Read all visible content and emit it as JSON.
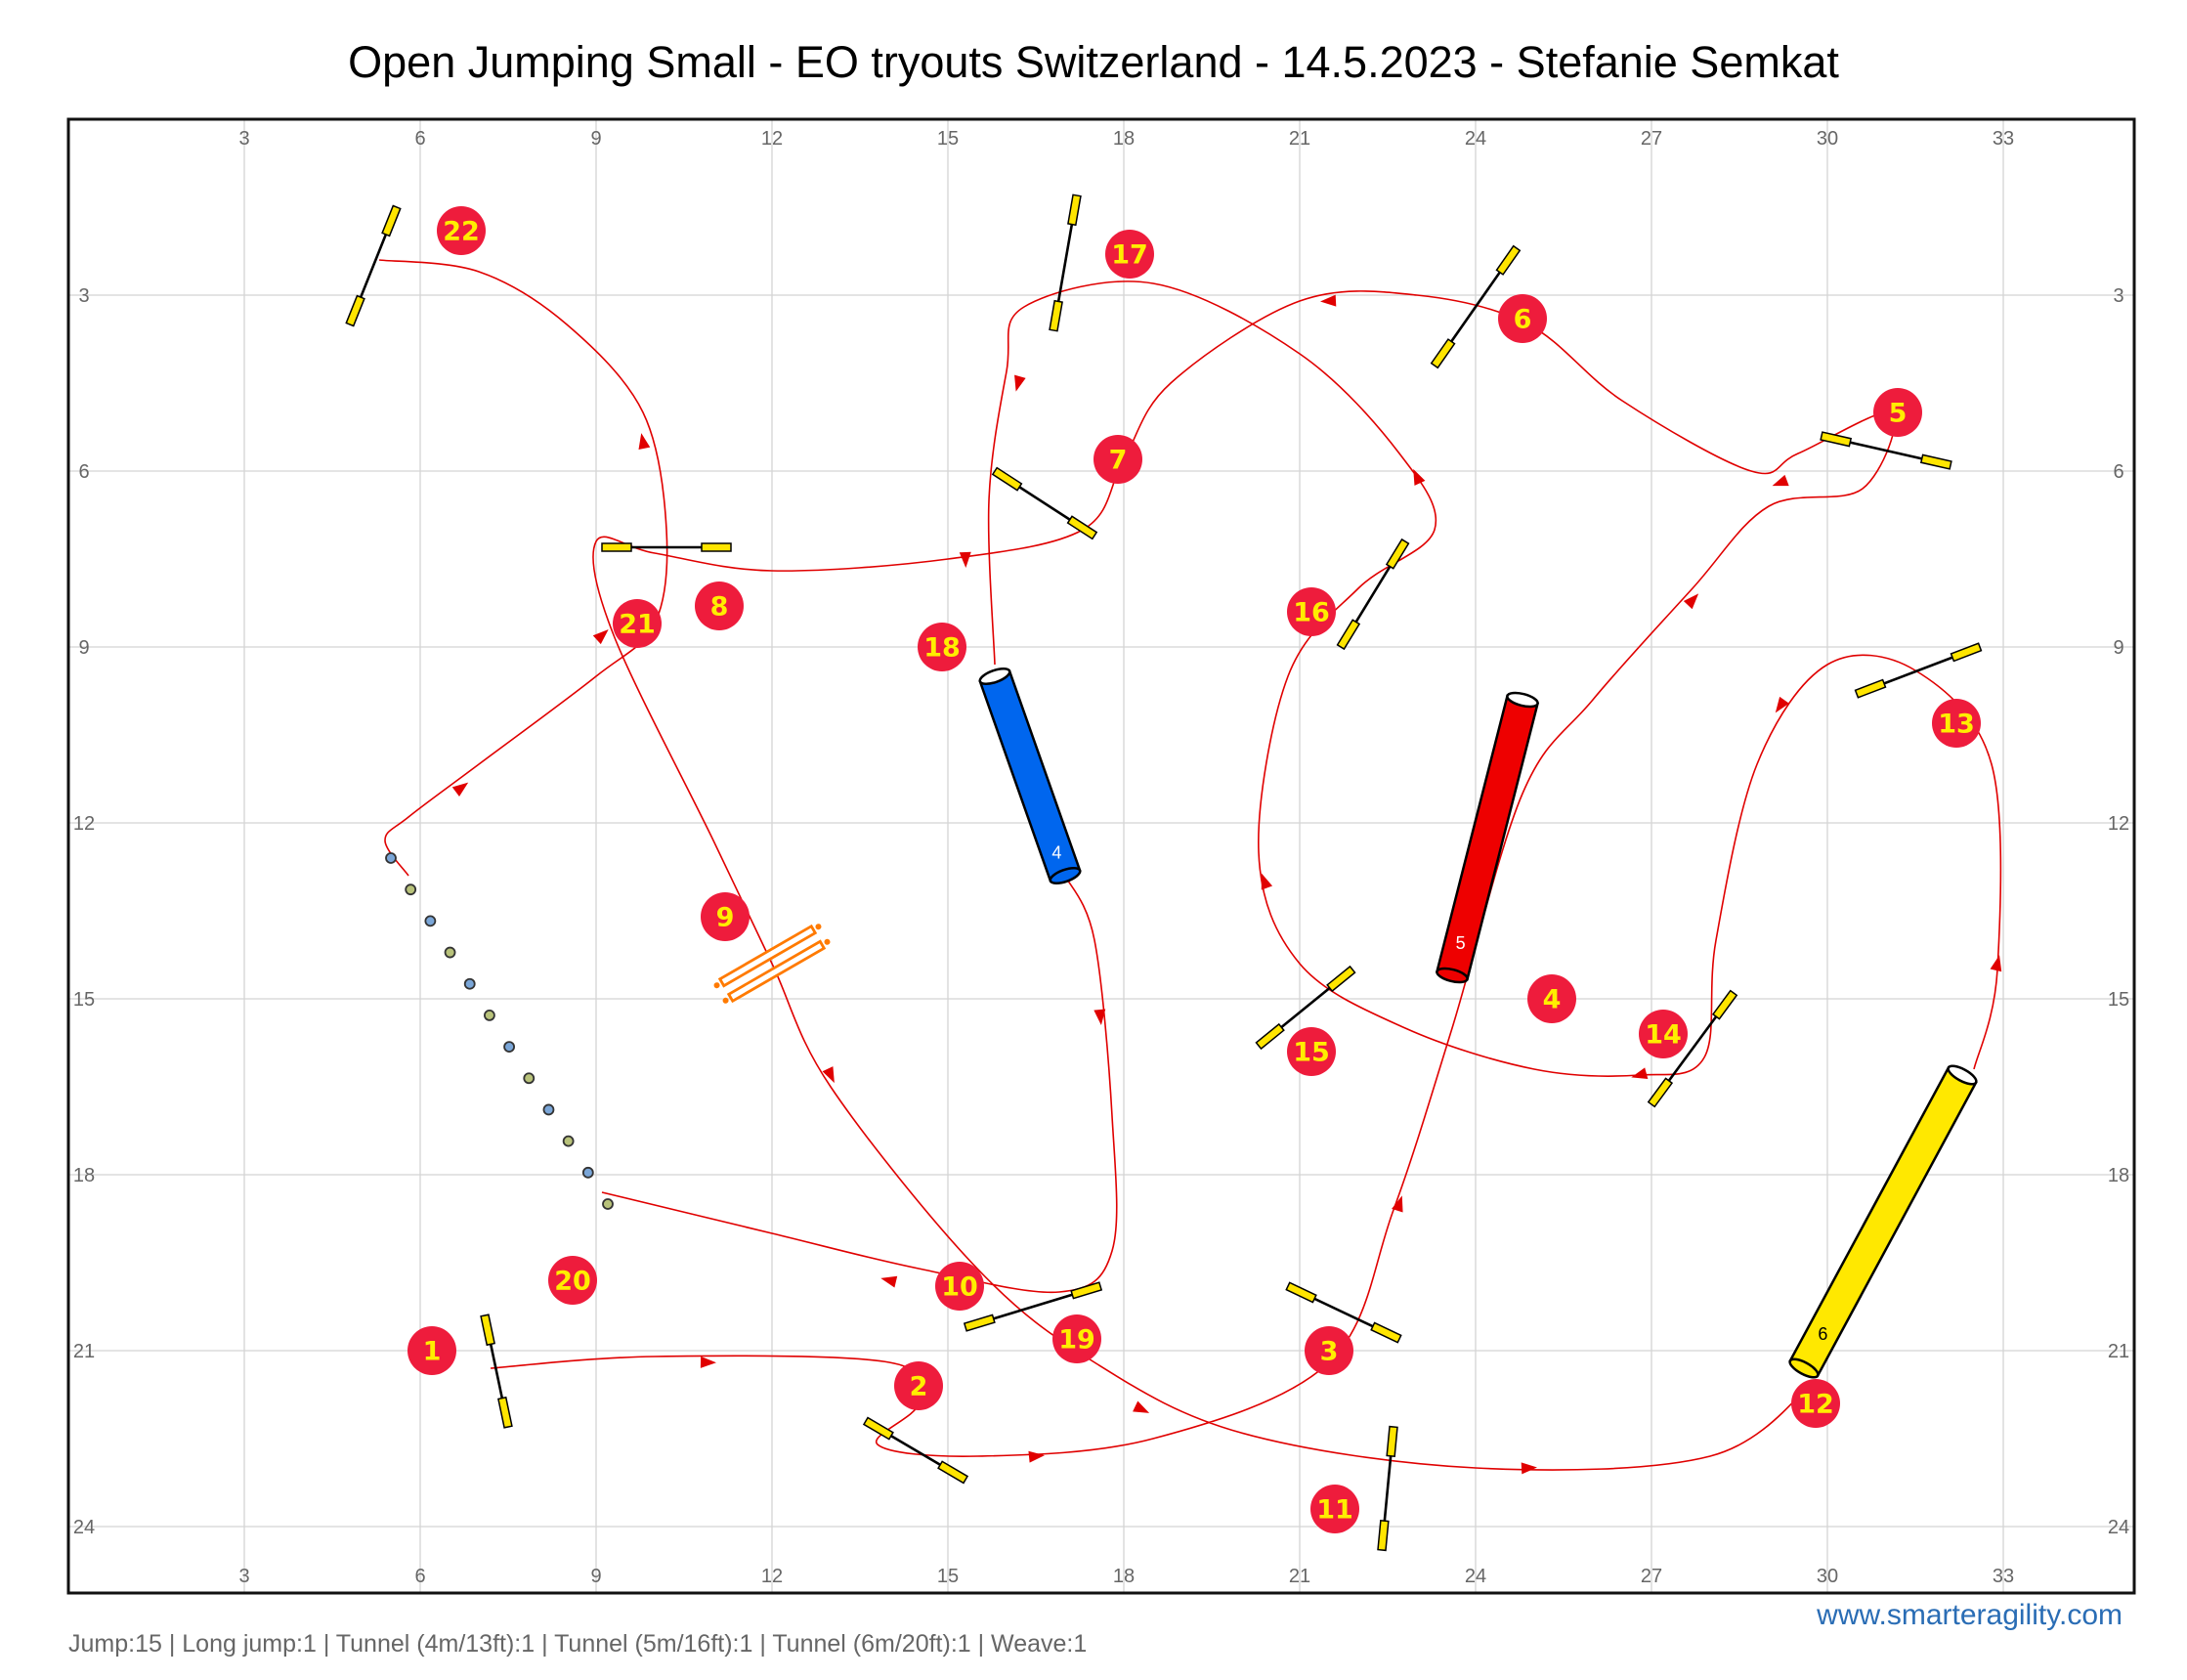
{
  "title": "Open Jumping Small - EO tryouts Switzerland - 14.5.2023 - Stefanie Semkat",
  "summary": "Jump:15 | Long jump:1 | Tunnel (4m/13ft):1 | Tunnel (5m/16ft):1 | Tunnel (6m/20ft):1 | Weave:1",
  "website": "www.smarteragility.com",
  "axes": {
    "x_ticks": [
      "3",
      "6",
      "9",
      "12",
      "15",
      "18",
      "21",
      "24",
      "27",
      "30",
      "33"
    ],
    "y_ticks": [
      "3",
      "6",
      "9",
      "12",
      "15",
      "18",
      "21",
      "24"
    ]
  },
  "colors": {
    "path": "#e00000",
    "number_circle": "#ee1c3c",
    "number_text": "#ffee00",
    "jump_wing": "#ffe500",
    "long_jump": "#ff7a00",
    "grid": "#d4d4d4"
  },
  "jumps": [
    {
      "x1": 5.6,
      "y1": 1.5,
      "x2": 4.8,
      "y2": 3.5
    },
    {
      "x1": 17.2,
      "y1": 1.3,
      "x2": 16.8,
      "y2": 3.6
    },
    {
      "x1": 24.7,
      "y1": 2.2,
      "x2": 23.3,
      "y2": 4.2
    },
    {
      "x1": 29.9,
      "y1": 5.4,
      "x2": 32.1,
      "y2": 5.9
    },
    {
      "x1": 15.8,
      "y1": 6.0,
      "x2": 17.5,
      "y2": 7.1
    },
    {
      "x1": 9.1,
      "y1": 7.3,
      "x2": 11.3,
      "y2": 7.3
    },
    {
      "x1": 22.8,
      "y1": 7.2,
      "x2": 21.7,
      "y2": 9.0
    },
    {
      "x1": 32.6,
      "y1": 9.0,
      "x2": 30.5,
      "y2": 9.8
    },
    {
      "x1": 28.4,
      "y1": 14.9,
      "x2": 27.0,
      "y2": 16.8
    },
    {
      "x1": 21.9,
      "y1": 14.5,
      "x2": 20.3,
      "y2": 15.8
    },
    {
      "x1": 17.6,
      "y1": 19.9,
      "x2": 15.3,
      "y2": 20.6
    },
    {
      "x1": 20.8,
      "y1": 19.9,
      "x2": 22.7,
      "y2": 20.8
    },
    {
      "x1": 7.1,
      "y1": 20.4,
      "x2": 7.5,
      "y2": 22.3
    },
    {
      "x1": 13.6,
      "y1": 22.2,
      "x2": 15.3,
      "y2": 23.2
    },
    {
      "x1": 22.6,
      "y1": 22.3,
      "x2": 22.4,
      "y2": 24.4
    }
  ],
  "numbers": [
    {
      "label": "1",
      "x": 6.2,
      "y": 21.0
    },
    {
      "label": "2",
      "x": 14.5,
      "y": 21.6
    },
    {
      "label": "3",
      "x": 21.5,
      "y": 21.0
    },
    {
      "label": "4",
      "x": 25.3,
      "y": 15.0
    },
    {
      "label": "5",
      "x": 31.2,
      "y": 5.0
    },
    {
      "label": "6",
      "x": 24.8,
      "y": 3.4
    },
    {
      "label": "7",
      "x": 17.9,
      "y": 5.8
    },
    {
      "label": "8",
      "x": 11.1,
      "y": 8.3
    },
    {
      "label": "9",
      "x": 11.2,
      "y": 13.6
    },
    {
      "label": "10",
      "x": 15.2,
      "y": 19.9
    },
    {
      "label": "11",
      "x": 21.6,
      "y": 23.7
    },
    {
      "label": "12",
      "x": 29.8,
      "y": 21.9
    },
    {
      "label": "13",
      "x": 32.2,
      "y": 10.3
    },
    {
      "label": "14",
      "x": 27.2,
      "y": 15.6
    },
    {
      "label": "15",
      "x": 21.2,
      "y": 15.9
    },
    {
      "label": "16",
      "x": 21.2,
      "y": 8.4
    },
    {
      "label": "17",
      "x": 18.1,
      "y": 2.3
    },
    {
      "label": "18",
      "x": 14.9,
      "y": 9.0
    },
    {
      "label": "19",
      "x": 17.2,
      "y": 20.8
    },
    {
      "label": "20",
      "x": 8.6,
      "y": 19.8
    },
    {
      "label": "21",
      "x": 9.7,
      "y": 8.6
    },
    {
      "label": "22",
      "x": 6.7,
      "y": 1.9
    }
  ],
  "tunnels": [
    {
      "label": "4",
      "color": "#0066ee",
      "label_color": "#ffffff",
      "x1": 15.8,
      "y1": 9.5,
      "x2": 17.0,
      "y2": 12.9
    },
    {
      "label": "5",
      "color": "#ee0000",
      "label_color": "#ffffff",
      "x1": 24.8,
      "y1": 9.9,
      "x2": 23.6,
      "y2": 14.6
    },
    {
      "label": "6",
      "color": "#ffe800",
      "label_color": "#000000",
      "x1": 32.3,
      "y1": 16.3,
      "x2": 29.6,
      "y2": 21.3
    }
  ],
  "weave": {
    "x1": 5.5,
    "y1": 12.6,
    "x2": 9.2,
    "y2": 18.5,
    "poles": 12
  },
  "long_jump": {
    "x": 12.0,
    "y": 14.4,
    "angle": -30,
    "length": 1.8
  },
  "course_path": [
    [
      7.2,
      21.3
    ],
    [
      10.0,
      21.1
    ],
    [
      14.0,
      21.2
    ],
    [
      14.5,
      21.9
    ],
    [
      13.8,
      22.6
    ],
    [
      15.5,
      22.8
    ],
    [
      18.5,
      22.5
    ],
    [
      21.5,
      21.2
    ],
    [
      22.6,
      18.6
    ],
    [
      23.6,
      15.5
    ],
    [
      24.8,
      11.5
    ],
    [
      26.0,
      9.9
    ],
    [
      27.7,
      8.0
    ],
    [
      29.0,
      6.6
    ],
    [
      30.6,
      6.3
    ],
    [
      31.1,
      5.0
    ],
    [
      29.5,
      5.7
    ],
    [
      28.7,
      6.0
    ],
    [
      26.5,
      4.8
    ],
    [
      24.9,
      3.5
    ],
    [
      23.0,
      3.0
    ],
    [
      21.0,
      3.1
    ],
    [
      18.8,
      4.5
    ],
    [
      18.0,
      5.8
    ],
    [
      17.3,
      7.0
    ],
    [
      15.0,
      7.5
    ],
    [
      12.0,
      7.7
    ],
    [
      10.0,
      7.4
    ],
    [
      9.0,
      7.2
    ],
    [
      9.3,
      8.8
    ],
    [
      11.0,
      12.3
    ],
    [
      12.0,
      14.4
    ],
    [
      13.0,
      16.5
    ],
    [
      15.5,
      19.6
    ],
    [
      17.5,
      21.2
    ],
    [
      20.0,
      22.4
    ],
    [
      24.0,
      23.0
    ],
    [
      28.0,
      22.8
    ],
    [
      29.8,
      21.5
    ]
  ],
  "course_path_b": [
    [
      32.5,
      16.2
    ],
    [
      32.9,
      14.5
    ],
    [
      32.8,
      11.0
    ],
    [
      31.5,
      9.4
    ],
    [
      30.0,
      9.3
    ],
    [
      28.8,
      11.0
    ],
    [
      28.1,
      14.0
    ],
    [
      27.9,
      16.0
    ],
    [
      26.8,
      16.3
    ],
    [
      25.0,
      16.2
    ],
    [
      22.8,
      15.5
    ],
    [
      21.0,
      14.4
    ],
    [
      20.3,
      12.5
    ],
    [
      20.8,
      9.5
    ],
    [
      22.0,
      8.0
    ],
    [
      23.3,
      7.0
    ],
    [
      22.7,
      5.7
    ],
    [
      21.0,
      4.0
    ],
    [
      18.5,
      2.8
    ],
    [
      16.3,
      3.2
    ],
    [
      16.0,
      4.3
    ],
    [
      15.7,
      6.5
    ],
    [
      15.8,
      9.3
    ]
  ],
  "course_path_c": [
    [
      17.0,
      12.9
    ],
    [
      17.5,
      14.0
    ],
    [
      17.8,
      17.0
    ],
    [
      17.8,
      19.3
    ],
    [
      16.9,
      20.0
    ],
    [
      14.5,
      19.6
    ],
    [
      12.0,
      19.0
    ],
    [
      9.1,
      18.3
    ]
  ],
  "course_path_d": [
    [
      5.8,
      12.9
    ],
    [
      5.4,
      12.3
    ],
    [
      5.8,
      11.9
    ],
    [
      7.0,
      11.0
    ],
    [
      9.0,
      9.5
    ],
    [
      10.0,
      8.6
    ],
    [
      10.2,
      7.0
    ],
    [
      9.8,
      5.0
    ],
    [
      8.5,
      3.5
    ],
    [
      7.0,
      2.6
    ],
    [
      5.3,
      2.4
    ]
  ],
  "arrows": [
    [
      10.9,
      21.2
    ],
    [
      16.5,
      22.8
    ],
    [
      22.7,
      18.5
    ],
    [
      27.7,
      8.2
    ],
    [
      29.2,
      6.2
    ],
    [
      21.5,
      3.1
    ],
    [
      15.3,
      7.5
    ],
    [
      9.1,
      8.8
    ],
    [
      13.0,
      16.3
    ],
    [
      18.3,
      22.0
    ],
    [
      24.9,
      23.0
    ],
    [
      32.9,
      14.4
    ],
    [
      29.2,
      10.0
    ],
    [
      26.8,
      16.3
    ],
    [
      20.4,
      13.0
    ],
    [
      23.0,
      6.1
    ],
    [
      16.2,
      4.5
    ],
    [
      17.6,
      15.3
    ],
    [
      14.0,
      19.8
    ],
    [
      6.7,
      11.4
    ],
    [
      9.8,
      5.5
    ]
  ]
}
